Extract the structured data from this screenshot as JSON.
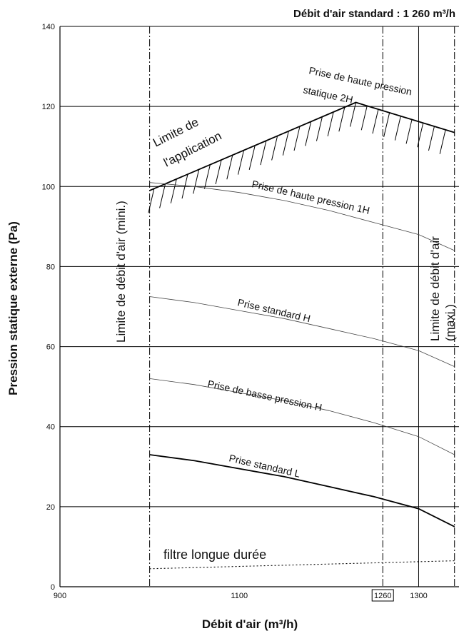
{
  "chart_data": {
    "type": "line",
    "title": "Débit d'air standard : 1 260 m³/h",
    "xlabel": "Débit d'air (m³/h)",
    "ylabel": "Pression statique externe (Pa)",
    "xlim": [
      900,
      1345
    ],
    "ylim": [
      0,
      140
    ],
    "x_ticks": [
      900,
      1100,
      1260,
      1300
    ],
    "x_tick_labels": [
      "900",
      "1100",
      "1260",
      "1300"
    ],
    "boxed_tick": "1260",
    "y_ticks": [
      0,
      20,
      40,
      60,
      80,
      100,
      120,
      140
    ],
    "y_tick_labels": [
      "0",
      "20",
      "40",
      "60",
      "80",
      "100",
      "120",
      "140"
    ],
    "grid": "horizontal",
    "reference_lines": [
      {
        "x": 1000,
        "style": "dash-dot",
        "label": "Limite de débit d'air (mini.)"
      },
      {
        "x": 1260,
        "style": "dash-dot",
        "label": ""
      },
      {
        "x": 1300,
        "style": "solid",
        "label": ""
      },
      {
        "x": 1340,
        "style": "dash-dot",
        "label": "Limite de débit d'air (maxi.)"
      }
    ],
    "series": [
      {
        "name": "Prise de haute pression statique 2H",
        "x": [
          1000,
          1340
        ],
        "y": [
          99,
          113.5
        ],
        "peak": {
          "x": 1230,
          "y": 121
        },
        "width": "bold",
        "hatched": true
      },
      {
        "name": "Prise de haute pression 1H",
        "x": [
          1000,
          1050,
          1100,
          1150,
          1200,
          1250,
          1300,
          1340
        ],
        "y": [
          101,
          100,
          98.5,
          96.5,
          94,
          91,
          88,
          84
        ],
        "width": "thin"
      },
      {
        "name": "Prise standard H",
        "x": [
          1000,
          1050,
          1100,
          1150,
          1200,
          1250,
          1300,
          1340
        ],
        "y": [
          72.5,
          71,
          69,
          67,
          64.5,
          62,
          59,
          55
        ],
        "width": "thin"
      },
      {
        "name": "Prise de basse pression H",
        "x": [
          1000,
          1050,
          1100,
          1150,
          1200,
          1250,
          1300,
          1340
        ],
        "y": [
          52,
          50.5,
          48.5,
          46.5,
          44,
          41,
          37.5,
          33
        ],
        "width": "thin"
      },
      {
        "name": "Prise standard L",
        "x": [
          1000,
          1050,
          1100,
          1150,
          1200,
          1250,
          1300,
          1340
        ],
        "y": [
          33,
          31.5,
          29.5,
          27.5,
          25,
          22.5,
          19.5,
          15
        ],
        "width": "bold"
      },
      {
        "name": "filtre longue durée",
        "x": [
          1000,
          1340
        ],
        "y": [
          4.5,
          6.5
        ],
        "width": "dotted"
      }
    ],
    "annotations": [
      "Limite de",
      "l'application"
    ]
  }
}
